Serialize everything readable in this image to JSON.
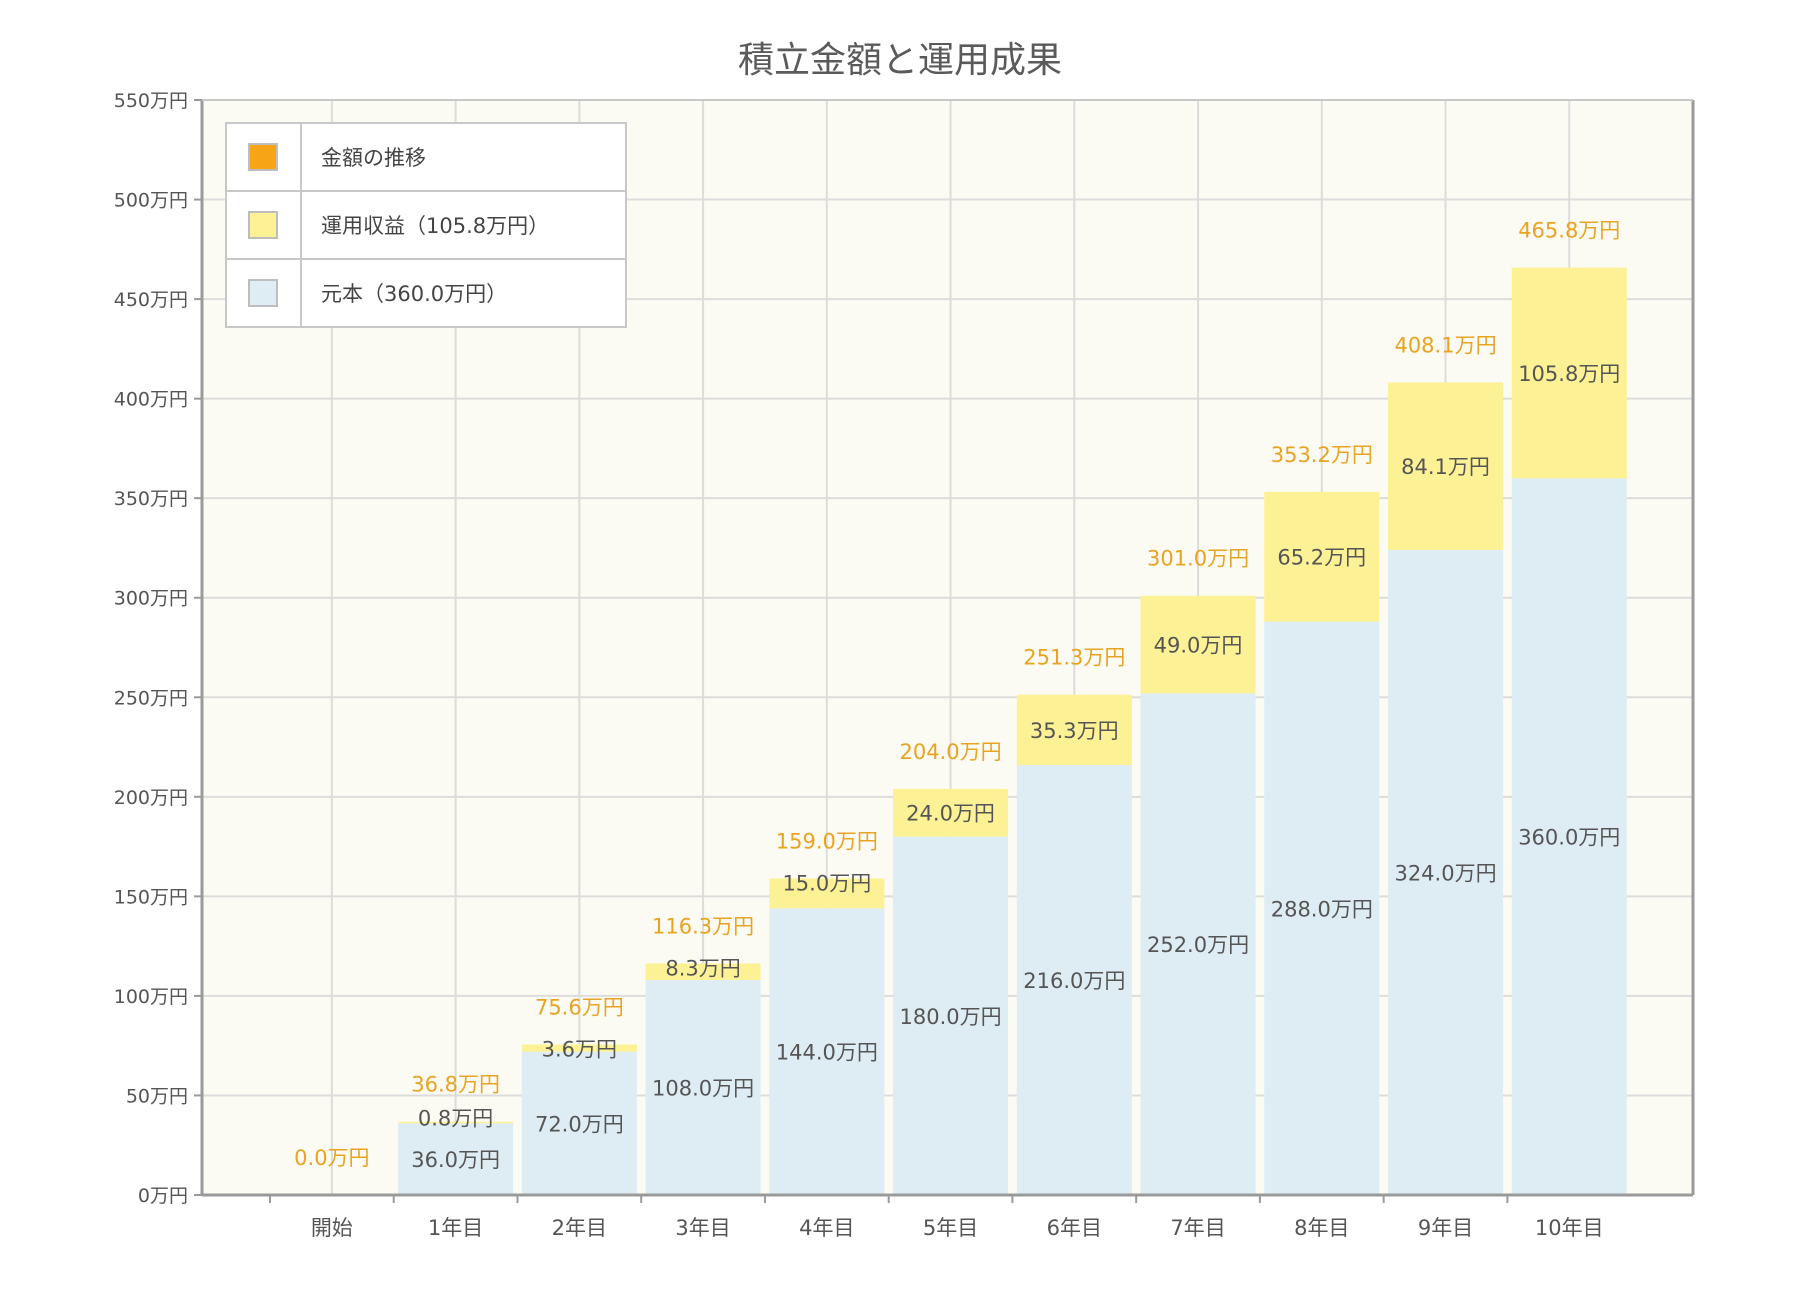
{
  "chart_data": {
    "type": "bar",
    "stacked": true,
    "title": "積立金額と運用成果",
    "categories": [
      "開始",
      "1年目",
      "2年目",
      "3年目",
      "4年目",
      "5年目",
      "6年目",
      "7年目",
      "8年目",
      "9年目",
      "10年目"
    ],
    "series": [
      {
        "name": "元本（360.0万円）",
        "color": "#deedf3",
        "values": [
          0,
          36.0,
          72.0,
          108.0,
          144.0,
          180.0,
          216.0,
          252.0,
          288.0,
          324.0,
          360.0
        ],
        "labels": [
          "",
          "36.0万円",
          "72.0万円",
          "108.0万円",
          "144.0万円",
          "180.0万円",
          "216.0万円",
          "252.0万円",
          "288.0万円",
          "324.0万円",
          "360.0万円"
        ]
      },
      {
        "name": "運用収益（105.8万円）",
        "color": "#fdf196",
        "values": [
          0,
          0.8,
          3.6,
          8.3,
          15.0,
          24.0,
          35.3,
          49.0,
          65.2,
          84.1,
          105.8
        ],
        "labels": [
          "",
          "0.8万円",
          "3.6万円",
          "8.3万円",
          "15.0万円",
          "24.0万円",
          "35.3万円",
          "49.0万円",
          "65.2万円",
          "84.1万円",
          "105.8万円"
        ]
      }
    ],
    "totals": [
      0.0,
      36.8,
      75.6,
      116.3,
      159.0,
      204.0,
      251.3,
      301.0,
      353.2,
      408.1,
      465.8
    ],
    "total_labels": [
      "0.0万円",
      "36.8万円",
      "75.6万円",
      "116.3万円",
      "159.0万円",
      "204.0万円",
      "251.3万円",
      "301.0万円",
      "353.2万円",
      "408.1万円",
      "465.8万円"
    ],
    "yticks": [
      0,
      50,
      100,
      150,
      200,
      250,
      300,
      350,
      400,
      450,
      500,
      550
    ],
    "ytick_labels": [
      "0万円",
      "50万円",
      "100万円",
      "150万円",
      "200万円",
      "250万円",
      "300万円",
      "350万円",
      "400万円",
      "450万円",
      "500万円",
      "550万円"
    ],
    "ylim": [
      0,
      550
    ],
    "grid": true,
    "legend": {
      "placement": "top-left",
      "items": [
        {
          "label": "金額の推移",
          "color": "#f7a516"
        },
        {
          "label": "運用収益（105.8万円）",
          "color": "#fdf196"
        },
        {
          "label": "元本（360.0万円）",
          "color": "#deedf3"
        }
      ]
    },
    "total_label_color": "#e8a321"
  }
}
